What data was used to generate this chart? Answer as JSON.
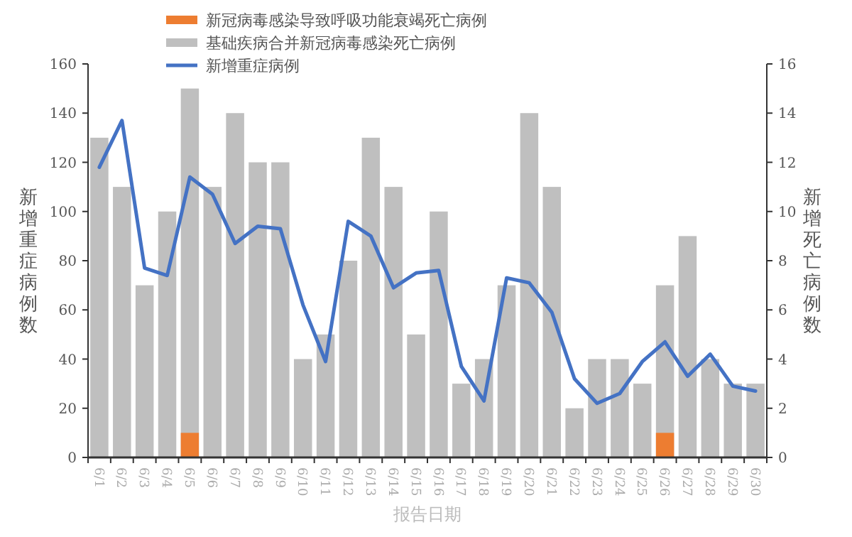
{
  "chart_data": {
    "type": "bar",
    "xlabel": "报告日期",
    "ylabel": "新增重症病例数",
    "y2label": "新增死亡病例数",
    "categories": [
      "6/1",
      "6/2",
      "6/3",
      "6/4",
      "6/5",
      "6/6",
      "6/7",
      "6/8",
      "6/9",
      "6/10",
      "6/11",
      "6/12",
      "6/13",
      "6/14",
      "6/15",
      "6/16",
      "6/17",
      "6/18",
      "6/19",
      "6/20",
      "6/21",
      "6/22",
      "6/23",
      "6/24",
      "6/25",
      "6/26",
      "6/27",
      "6/28",
      "6/29",
      "6/30"
    ],
    "series": [
      {
        "name": "新冠病毒感染导致呼吸功能衰竭死亡病例",
        "axis": "y2",
        "color": "#ed7d31",
        "values": [
          null,
          null,
          null,
          null,
          1,
          null,
          null,
          null,
          null,
          null,
          null,
          null,
          null,
          null,
          null,
          null,
          null,
          null,
          null,
          null,
          null,
          null,
          null,
          null,
          null,
          1,
          null,
          null,
          null,
          null
        ]
      },
      {
        "name": "基础疾病合并新冠病毒感染死亡病例",
        "axis": "y2",
        "color": "#bfbfbf",
        "values": [
          13,
          11,
          7,
          10,
          15,
          11,
          14,
          12,
          12,
          4,
          5,
          8,
          13,
          11,
          5,
          10,
          3,
          4,
          7,
          14,
          11,
          2,
          4,
          4,
          3,
          7,
          9,
          4,
          3,
          3
        ]
      },
      {
        "name": "新增重症病例",
        "type": "line",
        "color": "#4472c4",
        "values": [
          118,
          137,
          77,
          74,
          114,
          107,
          87,
          94,
          93,
          62,
          39,
          96,
          90,
          69,
          75,
          76,
          37,
          23,
          73,
          71,
          59,
          32,
          22,
          26,
          39,
          47,
          33,
          42,
          29,
          27
        ]
      }
    ],
    "ylim": [
      0,
      160
    ],
    "yticks": [
      0,
      20,
      40,
      60,
      80,
      100,
      120,
      140,
      160
    ],
    "y2lim": [
      0,
      16
    ],
    "y2ticks": [
      0,
      2,
      4,
      6,
      8,
      10,
      12,
      14,
      16
    ],
    "grid": false,
    "legend": "top left",
    "marker": "none",
    "line_style": "solid"
  }
}
